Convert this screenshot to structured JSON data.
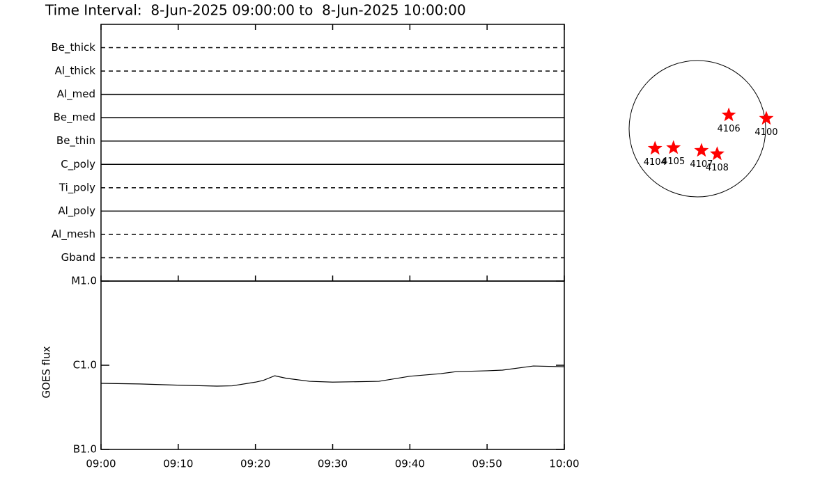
{
  "title": "Time Interval:  8-Jun-2025 09:00:00 to  8-Jun-2025 10:00:00",
  "chart_data": [
    {
      "type": "timeline",
      "series": [
        {
          "name": "Be_thick",
          "style": "dashed"
        },
        {
          "name": "Al_thick",
          "style": "dashed"
        },
        {
          "name": "Al_med",
          "style": "solid"
        },
        {
          "name": "Be_med",
          "style": "solid"
        },
        {
          "name": "Be_thin",
          "style": "solid"
        },
        {
          "name": "C_poly",
          "style": "solid"
        },
        {
          "name": "Ti_poly",
          "style": "dashed"
        },
        {
          "name": "Al_poly",
          "style": "solid"
        },
        {
          "name": "Al_mesh",
          "style": "dashed"
        },
        {
          "name": "Gband",
          "style": "dashed"
        }
      ],
      "xlim": [
        "09:00",
        "10:00"
      ],
      "xticks": [
        "09:00",
        "09:10",
        "09:20",
        "09:30",
        "09:40",
        "09:50",
        "10:00"
      ]
    },
    {
      "type": "line",
      "ylabel": "GOES flux",
      "log_scale": true,
      "color": "#000000",
      "x": [
        "09:00",
        "09:05",
        "09:10",
        "09:15",
        "09:17",
        "09:20",
        "09:21",
        "09:22.5",
        "09:24",
        "09:27",
        "09:30",
        "09:36",
        "09:40",
        "09:44",
        "09:46",
        "09:50",
        "09:52",
        "09:56",
        "10:00"
      ],
      "values": [
        6.1e-07,
        6e-07,
        5.8e-07,
        5.65e-07,
        5.7e-07,
        6.3e-07,
        6.6e-07,
        7.5e-07,
        7e-07,
        6.45e-07,
        6.3e-07,
        6.45e-07,
        7.4e-07,
        7.95e-07,
        8.4e-07,
        8.6e-07,
        8.75e-07,
        9.8e-07,
        9.6e-07
      ],
      "xlim": [
        "09:00",
        "10:00"
      ],
      "xticks": [
        "09:00",
        "09:10",
        "09:20",
        "09:30",
        "09:40",
        "09:50",
        "10:00"
      ],
      "ylim": [
        1e-07,
        1e-05
      ],
      "yticks": [
        {
          "value": 1e-07,
          "label": "B1.0"
        },
        {
          "value": 1e-06,
          "label": "C1.0"
        },
        {
          "value": 1e-05,
          "label": "M1.0"
        }
      ]
    },
    {
      "type": "disk",
      "color": "#ff0000",
      "labels": [
        "4106",
        "4100",
        "4104",
        "4105",
        "4107",
        "4108"
      ],
      "x": [
        0.46,
        1.01,
        -0.62,
        -0.35,
        0.06,
        0.29
      ],
      "values": [
        0.2,
        0.15,
        -0.29,
        -0.28,
        -0.32,
        -0.37
      ],
      "xlim": [
        -1,
        1
      ],
      "ylim": [
        -1,
        1
      ]
    }
  ]
}
